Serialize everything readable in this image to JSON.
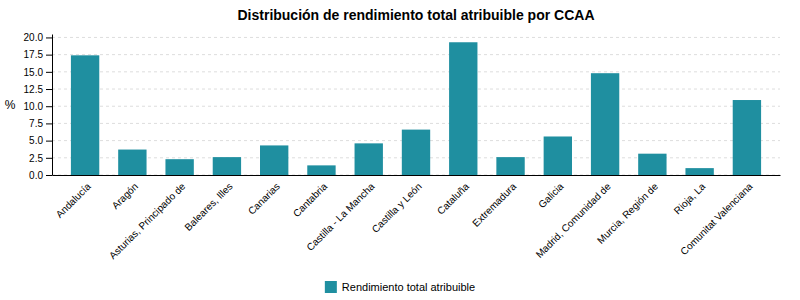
{
  "chart_data": {
    "type": "bar",
    "title": "Distribución de rendimiento total atribuible por CCAA",
    "ylabel": "%",
    "categories": [
      "Andalucía",
      "Aragón",
      "Asturias, Principado de",
      "Baleares, Illes",
      "Canarias",
      "Cantabria",
      "Castilla - La Mancha",
      "Castilla y León",
      "Cataluña",
      "Extremadura",
      "Galicia",
      "Madrid, Comunidad de",
      "Murcia, Región de",
      "Rioja, La",
      "Comunitat Valenciana"
    ],
    "series": [
      {
        "name": "Rendimiento total atribuible",
        "color": "#1f8fa0",
        "values": [
          17.4,
          3.7,
          2.3,
          2.6,
          4.3,
          1.4,
          4.6,
          6.6,
          19.3,
          2.6,
          5.6,
          14.8,
          3.1,
          1.0,
          10.9
        ]
      }
    ],
    "ylim": [
      0,
      20.5
    ],
    "yticks": [
      {
        "value": 0,
        "label": "0.0"
      },
      2.5,
      {
        "value": 5,
        "label": "5.0"
      },
      7.5,
      {
        "value": 10,
        "label": "10.0"
      },
      12.5,
      {
        "value": 15,
        "label": "15.0"
      },
      17.5,
      {
        "value": 20,
        "label": "20.0"
      }
    ],
    "grid": true,
    "legend": "bottom"
  }
}
